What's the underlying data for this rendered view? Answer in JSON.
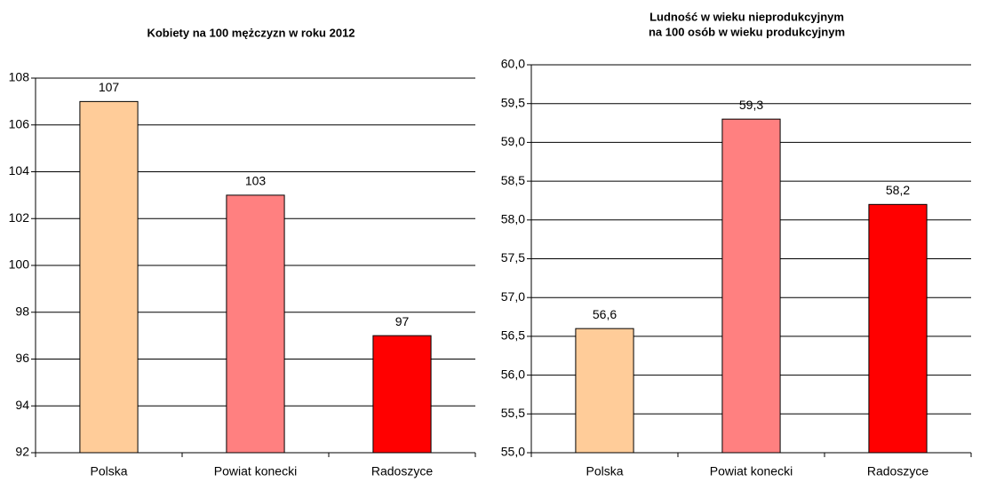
{
  "chart_data": [
    {
      "type": "bar",
      "title": [
        "Kobiety na 100 mężczyzn w roku 2012"
      ],
      "categories": [
        "Polska",
        "Powiat konecki",
        "Radoszyce"
      ],
      "values": [
        107,
        103,
        97
      ],
      "colors": [
        "#ffcc99",
        "#ff8080",
        "#ff0000"
      ],
      "ylim": [
        92,
        108
      ],
      "yticks": [
        92,
        94,
        96,
        98,
        100,
        102,
        104,
        106,
        108
      ],
      "grid": true
    },
    {
      "type": "bar",
      "title": [
        "Ludność w wieku nieprodukcyjnym",
        "na 100 osób w wieku produkcyjnym"
      ],
      "categories": [
        "Polska",
        "Powiat konecki",
        "Radoszyce"
      ],
      "values": [
        56.6,
        59.3,
        58.2
      ],
      "value_labels": [
        "56,6",
        "59,3",
        "58,2"
      ],
      "colors": [
        "#ffcc99",
        "#ff8080",
        "#ff0000"
      ],
      "ylim": [
        55,
        60
      ],
      "yticks": [
        {
          "value": 55,
          "label": "55,0"
        },
        {
          "value": 55.5,
          "label": "55,5"
        },
        {
          "value": 56,
          "label": "56,0"
        },
        {
          "value": 56.5,
          "label": "56,5"
        },
        {
          "value": 57,
          "label": "57,0"
        },
        {
          "value": 57.5,
          "label": "57,5"
        },
        {
          "value": 58,
          "label": "58,0"
        },
        {
          "value": 58.5,
          "label": "58,5"
        },
        {
          "value": 59,
          "label": "59,0"
        },
        {
          "value": 59.5,
          "label": "59,5"
        },
        {
          "value": 60,
          "label": "60,0"
        }
      ],
      "grid": true
    }
  ]
}
